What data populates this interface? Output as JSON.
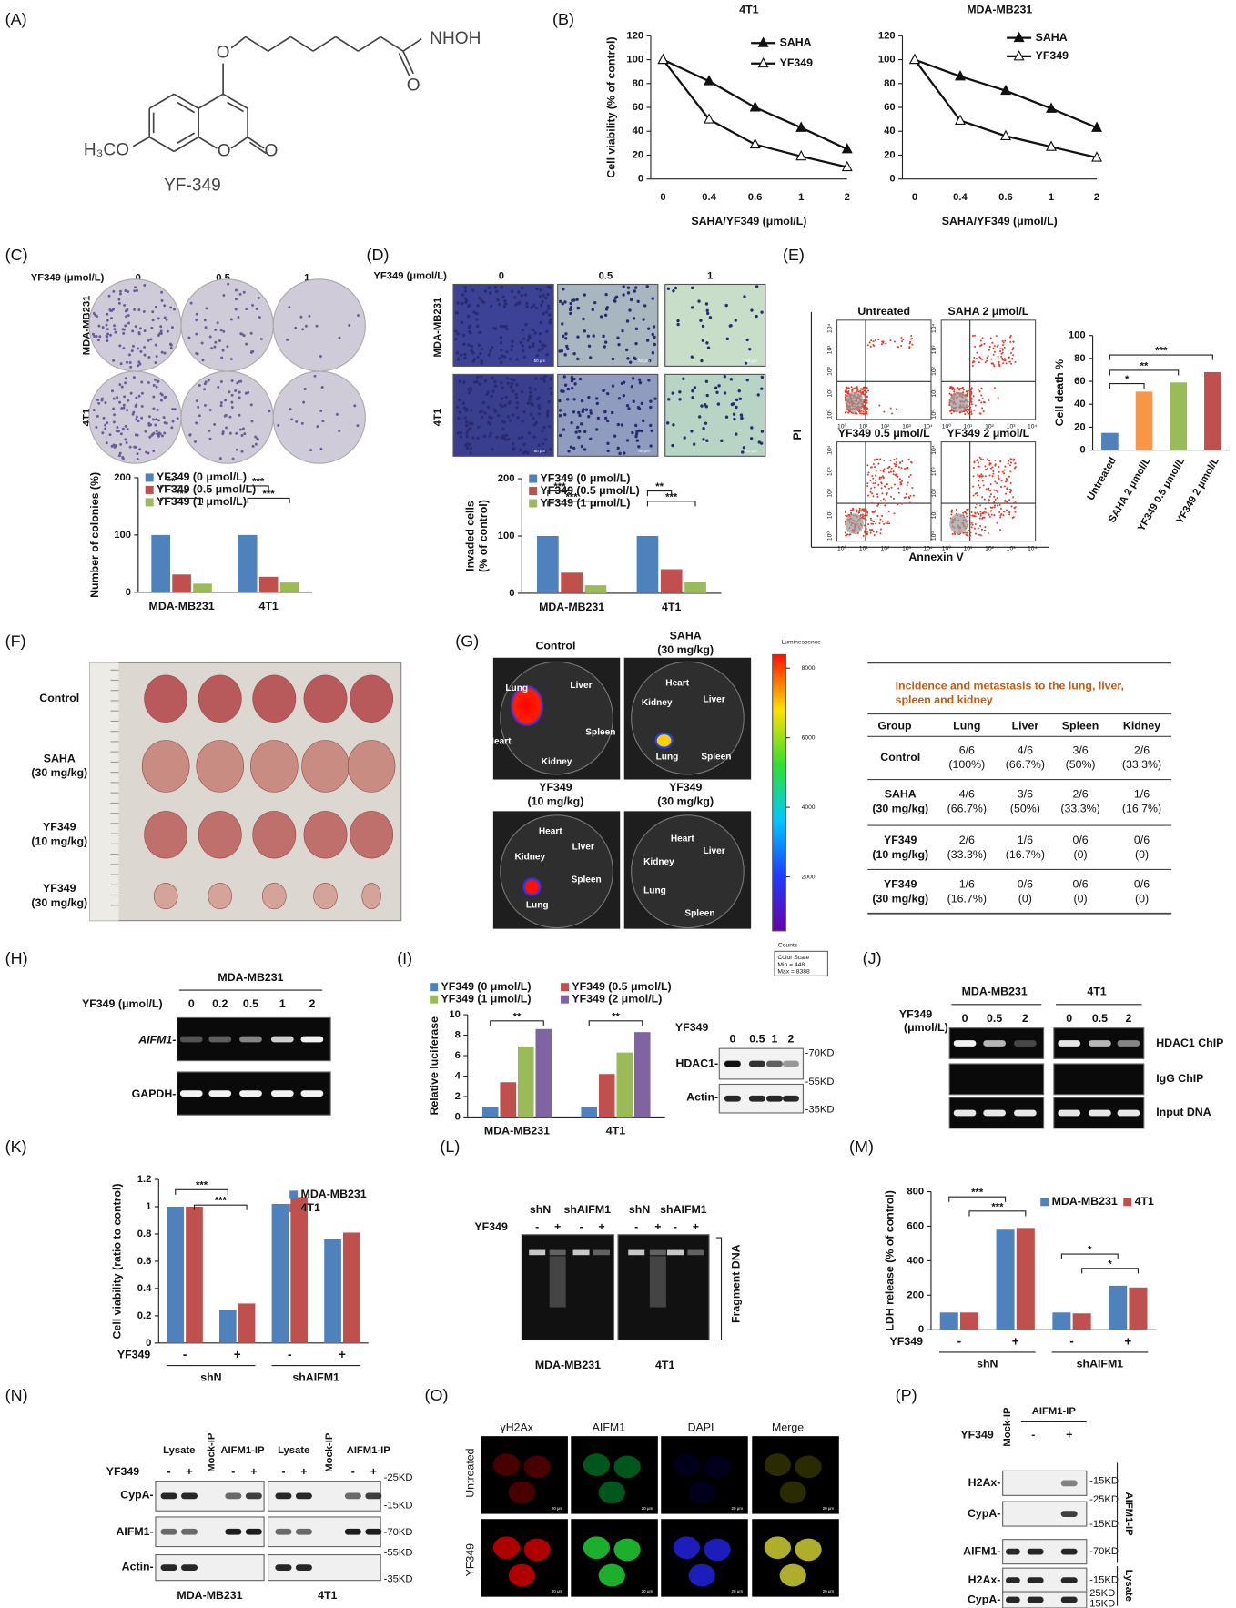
{
  "labels": [
    "(A)",
    "(B)",
    "(C)",
    "(D)",
    "(E)",
    "(F)",
    "(G)",
    "(H)",
    "(I)",
    "(J)",
    "(K)",
    "(L)",
    "(M)",
    "(N)",
    "(O)",
    "(P)"
  ],
  "molecule": {
    "groups": [
      "NHOH",
      "O",
      "O",
      "O",
      "O",
      "H₃CO"
    ],
    "name": "YF-349"
  },
  "chart_data": [
    {
      "type": "line",
      "title": "4T1",
      "ylabel": "Cell viability (% of control)",
      "xlabel": "SAHA/YF349 (μmol/L)",
      "categories": [
        "0",
        "0.4",
        "0.6",
        "1",
        "2"
      ],
      "series": [
        {
          "name": "SAHA",
          "color": "#111111",
          "marker": "filled-triangle",
          "values": [
            100,
            82,
            60,
            43,
            25
          ]
        },
        {
          "name": "YF349",
          "color": "#111111",
          "marker": "open-triangle",
          "values": [
            100,
            50,
            29,
            19,
            10
          ]
        }
      ],
      "ylim": [
        0,
        120
      ],
      "yticks": [
        0,
        20,
        40,
        60,
        80,
        100,
        120
      ]
    },
    {
      "type": "line",
      "title": "MDA-MB231",
      "xlabel": "SAHA/YF349 (μmol/L)",
      "categories": [
        "0",
        "0.4",
        "0.6",
        "1",
        "2"
      ],
      "series": [
        {
          "name": "SAHA",
          "color": "#111111",
          "marker": "filled-triangle",
          "values": [
            100,
            86,
            74,
            59,
            43
          ]
        },
        {
          "name": "YF349",
          "color": "#111111",
          "marker": "open-triangle",
          "values": [
            100,
            49,
            36,
            27,
            18
          ]
        }
      ],
      "ylim": [
        0,
        120
      ],
      "yticks": [
        0,
        20,
        40,
        60,
        80,
        100,
        120
      ]
    },
    {
      "type": "bar",
      "ylabel": "Number of colonies (%)",
      "categories": [
        "MDA-MB231",
        "4T1"
      ],
      "series": [
        {
          "name": "YF349 (0 μmol/L)",
          "color": "#4f81bd",
          "values": [
            100,
            100
          ]
        },
        {
          "name": "YF349 (0.5 μmol/L)",
          "color": "#c0504d",
          "values": [
            31,
            27
          ]
        },
        {
          "name": "YF349 (1 μmol/L)",
          "color": "#9bbb59",
          "values": [
            15,
            17
          ]
        }
      ],
      "ylim": [
        0,
        200
      ],
      "yticks": [
        0,
        100,
        200
      ],
      "annotations": [
        "**",
        "***",
        "***",
        "***"
      ]
    },
    {
      "type": "bar",
      "ylabel": [
        "Invaded cells",
        "(% of control)"
      ],
      "categories": [
        "MDA-MB231",
        "4T1"
      ],
      "series": [
        {
          "name": "YF349 (0 μmol/L)",
          "color": "#4f81bd",
          "values": [
            100,
            100
          ]
        },
        {
          "name": "YF349 (0.5 μmol/L)",
          "color": "#c0504d",
          "values": [
            36,
            42
          ]
        },
        {
          "name": "YF349 (1 μmol/L)",
          "color": "#9bbb59",
          "values": [
            14,
            19
          ]
        }
      ],
      "ylim": [
        0,
        200
      ],
      "yticks": [
        0,
        100,
        200
      ],
      "annotations": [
        "***",
        "***",
        "**",
        "***"
      ]
    },
    {
      "type": "bar",
      "ylabel": "Cell death %",
      "categories": [
        "Untreated",
        "SAHA 2 μmol/L",
        "YF349 0.5 μmol/L",
        "YF349 2 μmol/L"
      ],
      "values": [
        15,
        51,
        59,
        68
      ],
      "colors": [
        "#4f81bd",
        "#f79646",
        "#9bbb59",
        "#c0504d"
      ],
      "ylim": [
        0,
        100
      ],
      "yticks": [
        0,
        20,
        40,
        60,
        80,
        100
      ],
      "annotations": [
        "*",
        "**",
        "***"
      ]
    },
    {
      "type": "bar",
      "ylabel": "Relative luciferase",
      "categories": [
        "MDA-MB231",
        "4T1"
      ],
      "series": [
        {
          "name": "YF349 (0 μmol/L)",
          "color": "#4f81bd",
          "values": [
            1,
            1
          ]
        },
        {
          "name": "YF349 (0.5 μmol/L)",
          "color": "#c0504d",
          "values": [
            3.4,
            4.2
          ]
        },
        {
          "name": "YF349 (1 μmol/L)",
          "color": "#9bbb59",
          "values": [
            6.9,
            6.3
          ]
        },
        {
          "name": "YF349 (2 μmol/L)",
          "color": "#8064a2",
          "values": [
            8.6,
            8.3
          ]
        }
      ],
      "ylim": [
        0,
        10
      ],
      "yticks": [
        0,
        2,
        4,
        6,
        8,
        10
      ],
      "annotations": [
        "**",
        "**"
      ]
    },
    {
      "type": "bar",
      "ylabel": "Cell viability (ratio to control)",
      "row_label": "YF349",
      "categories": [
        "-",
        "+",
        "-",
        "+"
      ],
      "groups": [
        "shN",
        "shAIFM1"
      ],
      "series": [
        {
          "name": "MDA-MB231",
          "color": "#4f81bd",
          "values": [
            1,
            0.24,
            1.02,
            0.76
          ]
        },
        {
          "name": "4T1",
          "color": "#c0504d",
          "values": [
            1,
            0.29,
            1.07,
            0.81
          ]
        }
      ],
      "ylim": [
        0,
        1.2
      ],
      "yticks": [
        0,
        0.2,
        0.4,
        0.6,
        0.8,
        1,
        1.2
      ],
      "annotations": [
        "***",
        "***"
      ]
    },
    {
      "type": "bar",
      "ylabel": "LDH release (% of control)",
      "row_label": "YF349",
      "categories": [
        "-",
        "+",
        "-",
        "+"
      ],
      "groups": [
        "shN",
        "shAIFM1"
      ],
      "series": [
        {
          "name": "MDA-MB231",
          "color": "#4f81bd",
          "values": [
            100,
            580,
            100,
            255
          ]
        },
        {
          "name": "4T1",
          "color": "#c0504d",
          "values": [
            100,
            590,
            95,
            245
          ]
        }
      ],
      "ylim": [
        0,
        800
      ],
      "yticks": [
        0,
        200,
        400,
        600,
        800
      ],
      "annotations": [
        "***",
        "***",
        "*",
        "*"
      ]
    }
  ],
  "colonies": {
    "axis_label": "YF349 (μmol/L)",
    "doses": [
      "0",
      "0.5",
      "1"
    ],
    "rows": [
      "MDA-MB231",
      "4T1"
    ]
  },
  "invasion": {
    "axis_label": "YF349 (μmol/L)",
    "doses": [
      "0",
      "0.5",
      "1"
    ],
    "rows": [
      "MDA-MB231",
      "4T1"
    ],
    "scale_bar": "50 μm"
  },
  "flow": {
    "plots": [
      "Untreated",
      "SAHA 2 μmol/L",
      "YF349 0.5 μmol/L",
      "YF349 2 μmol/L"
    ],
    "ylabel": "PI",
    "xlabel": "Annexin V",
    "ticks": [
      "10⁰",
      "10¹",
      "10²",
      "10³",
      "10⁴"
    ]
  },
  "tumors": {
    "groups": [
      [
        "Control"
      ],
      [
        "SAHA",
        "(30 mg/kg)"
      ],
      [
        "YF349",
        "(10 mg/kg)"
      ],
      [
        "YF349",
        "(30 mg/kg)"
      ]
    ]
  },
  "imaging": {
    "groups": [
      [
        "Control"
      ],
      [
        "SAHA",
        "(30 mg/kg)"
      ],
      [
        "YF349",
        "(10 mg/kg)"
      ],
      [
        "YF349",
        "(30 mg/kg)"
      ]
    ],
    "organs": [
      "Lung",
      "Liver",
      "Heart",
      "Spleen",
      "Kidney"
    ],
    "colorbar": {
      "title": "Luminescence",
      "lim": [
        448,
        8388
      ],
      "ticks": [
        2000,
        4000,
        6000,
        8000
      ],
      "unit": "Counts",
      "scale": [
        "Color Scale",
        "Min = 448",
        "Max = 8388"
      ]
    }
  },
  "table": {
    "title": [
      "Incidence and metastasis to the lung, liver,",
      "spleen and kidney"
    ],
    "header": [
      "Group",
      "Lung",
      "Liver",
      "Spleen",
      "Kidney"
    ],
    "rows": [
      [
        [
          "Control"
        ],
        [
          "6/6",
          "(100%)"
        ],
        [
          "4/6",
          "(66.7%)"
        ],
        [
          "3/6",
          "(50%)"
        ],
        [
          "2/6",
          "(33.3%)"
        ]
      ],
      [
        [
          "SAHA",
          "(30 mg/kg)"
        ],
        [
          "4/6",
          "(66.7%)"
        ],
        [
          "3/6",
          "(50%)"
        ],
        [
          "2/6",
          "(33.3%)"
        ],
        [
          "1/6",
          "(16.7%)"
        ]
      ],
      [
        [
          "YF349",
          "(10 mg/kg)"
        ],
        [
          "2/6",
          "(33.3%)"
        ],
        [
          "1/6",
          "(16.7%)"
        ],
        [
          "0/6",
          "(0)"
        ],
        [
          "0/6",
          "(0)"
        ]
      ],
      [
        [
          "YF349",
          "(30 mg/kg)"
        ],
        [
          "1/6",
          "(16.7%)"
        ],
        [
          "0/6",
          "(0)"
        ],
        [
          "0/6",
          "(0)"
        ],
        [
          "0/6",
          "(0)"
        ]
      ]
    ]
  },
  "rtpcr": {
    "cell": "MDA-MB231",
    "axis_label": "YF349 (μmol/L)",
    "doses": [
      "0",
      "0.2",
      "0.5",
      "1",
      "2"
    ],
    "genes": [
      "AIFM1-",
      "GAPDH-"
    ]
  },
  "blot_i": {
    "axis_label": "YF349",
    "doses": [
      "0",
      "0.5",
      "1",
      "2"
    ],
    "proteins": [
      "HDAC1-",
      "Actin-"
    ],
    "markers": [
      "-70KD",
      "-55KD",
      "-35KD"
    ]
  },
  "chip": {
    "cells": [
      "MDA-MB231",
      "4T1"
    ],
    "axis_label": [
      "YF349",
      "(μmol/L)"
    ],
    "doses": [
      "0",
      "0.5",
      "2"
    ],
    "rows": [
      "HDAC1 ChIP",
      "IgG ChIP",
      "Input DNA"
    ]
  },
  "ladder": {
    "groups": [
      "shN",
      "shAIFM1"
    ],
    "treatment": "YF349",
    "signs": [
      "-",
      "+"
    ],
    "cells": [
      "MDA-MB231",
      "4T1"
    ],
    "side_label": "Fragment DNA"
  },
  "coip_n": {
    "columns": [
      "Lysate",
      "Mock-IP",
      "AIFM1-IP"
    ],
    "treatment": "YF349",
    "signs": [
      "-",
      "+"
    ],
    "proteins": [
      "CypA-",
      "AIFM1-",
      "Actin-"
    ],
    "markers": [
      "-25KD",
      "-15KD",
      "-70KD",
      "-55KD",
      "-35KD"
    ],
    "cells": [
      "MDA-MB231",
      "4T1"
    ]
  },
  "imaging_o": {
    "channels": [
      "γH2Ax",
      "AIFM1",
      "DAPI",
      "Merge"
    ],
    "rows": [
      "Untreated",
      "YF349"
    ],
    "scale_bar": "20 μm"
  },
  "coip_p": {
    "columns": [
      "Mock-IP",
      "AIFM1-IP"
    ],
    "treatment": "YF349",
    "signs": [
      "-",
      "+"
    ],
    "proteins": [
      "H2Ax-",
      "CypA-",
      "AIFM1-",
      "H2Ax-",
      "CypA-"
    ],
    "markers": [
      "-15KD",
      "-25KD",
      "-15KD",
      "-70KD",
      "-15KD",
      "25KD",
      "15KD"
    ],
    "sections": [
      "AIFM1-IP",
      "Lysate"
    ]
  }
}
